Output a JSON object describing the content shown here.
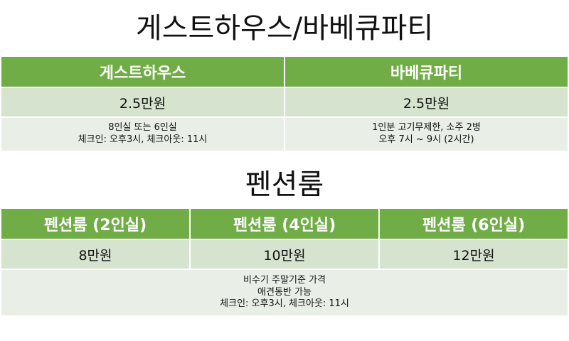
{
  "section1": {
    "title": "게스트하우스/바베큐파티",
    "headers": [
      "게스트하우스",
      "바베큐파티"
    ],
    "prices": [
      "2.5만원",
      "2.5만원"
    ],
    "details": [
      [
        "8인실 또는 6인실",
        "체크인: 오후3시, 체크아웃: 11시"
      ],
      [
        "1인분 고기무제한, 소주 2병",
        "오후 7시 ~ 9시 (2시간)"
      ]
    ]
  },
  "section2": {
    "title": "펜션룸",
    "headers": [
      "펜션룸 (2인실)",
      "펜션룸 (4인실)",
      "펜션룸 (6인실)"
    ],
    "prices": [
      "8만원",
      "10만원",
      "12만원"
    ],
    "details": [
      "비수기 주말기준 가격",
      "애견동반 가능",
      "체크인: 오후3시, 체크아웃: 11시"
    ]
  },
  "colors": {
    "header_bg": "#70ad47",
    "row_dark": "#d5e3cf",
    "row_light": "#e9efe7"
  }
}
